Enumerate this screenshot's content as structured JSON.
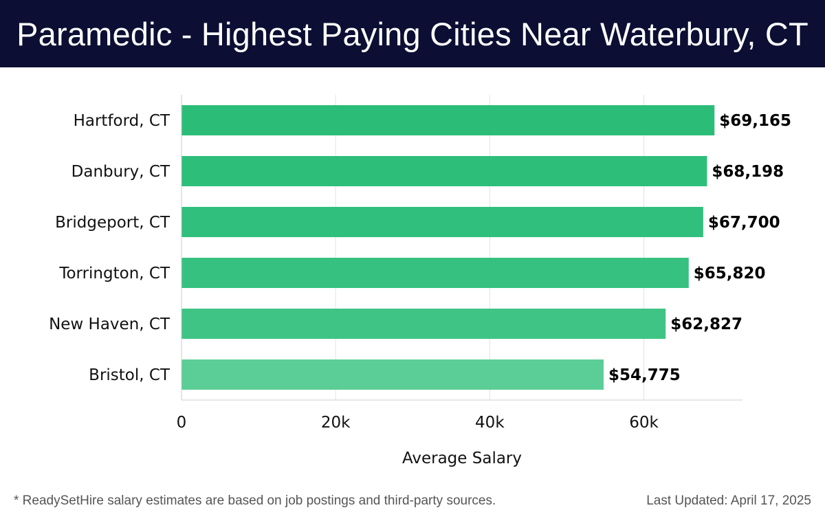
{
  "header": {
    "title": "Paramedic - Highest Paying Cities Near Waterbury, CT"
  },
  "chart_data": {
    "type": "bar",
    "orientation": "horizontal",
    "categories": [
      "Hartford, CT",
      "Danbury, CT",
      "Bridgeport, CT",
      "Torrington, CT",
      "New Haven, CT",
      "Bristol, CT"
    ],
    "values": [
      69165,
      68198,
      67700,
      65820,
      62827,
      54775
    ],
    "value_labels": [
      "$69,165",
      "$68,198",
      "$67,700",
      "$65,820",
      "$62,827",
      "$54,775"
    ],
    "xlabel": "Average Salary",
    "ylabel": "",
    "xlim": [
      0,
      72800
    ],
    "x_ticks": [
      0,
      20000,
      40000,
      60000
    ],
    "x_tick_labels": [
      "0",
      "20k",
      "40k",
      "60k"
    ],
    "grid": "vertical",
    "bar_colors": [
      "#2bbd78",
      "#2dbe7a",
      "#30bf7c",
      "#36c180",
      "#3fc485",
      "#5bcd96"
    ]
  },
  "footer": {
    "note": "* ReadySetHire salary estimates are based on job postings and third-party sources.",
    "updated": "Last Updated: April 17, 2025"
  }
}
